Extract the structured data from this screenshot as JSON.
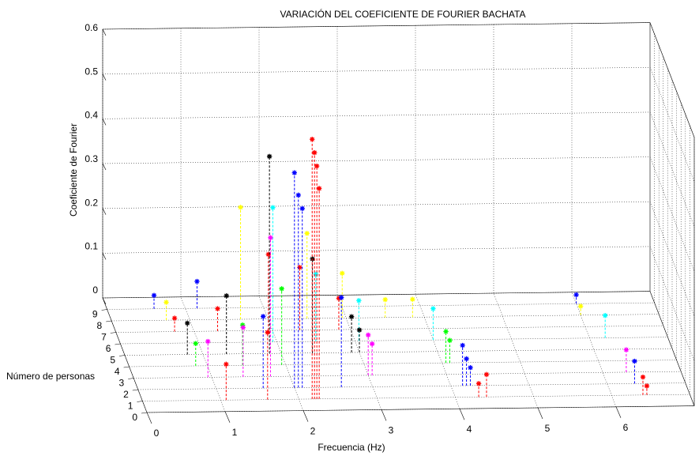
{
  "chart_data": {
    "type": "stem3",
    "title": "VARIACIÓN DEL COEFICIENTE DE FOURIER BACHATA",
    "xlabel": "Frecuencia (Hz)",
    "ylabel": "Número de personas",
    "zlabel": "Coeficiente de Fourier",
    "xlim": [
      0,
      7
    ],
    "xticks": [
      0,
      1,
      2,
      3,
      4,
      5,
      6
    ],
    "ylim": [
      0,
      10
    ],
    "yticks": [
      0,
      1,
      2,
      3,
      4,
      5,
      6,
      7,
      8,
      9
    ],
    "zlim": [
      0,
      0.6
    ],
    "zticks": [
      0,
      0.1,
      0.2,
      0.3,
      0.4,
      0.5,
      0.6
    ],
    "grid": true,
    "series": [
      {
        "person": 1,
        "color": "#ff0000",
        "x": [
          1.07,
          1.6,
          2.17,
          2.2,
          2.23,
          2.26,
          4.3,
          4.4,
          6.4,
          6.45
        ],
        "values": [
          0.08,
          0.15,
          0.58,
          0.55,
          0.52,
          0.47,
          0.03,
          0.05,
          0.04,
          0.02
        ]
      },
      {
        "person": 2,
        "color": "#0000ff",
        "x": [
          1.6,
          2.0,
          2.05,
          2.1,
          2.6,
          4.15,
          4.2,
          4.25,
          6.35
        ],
        "values": [
          0.16,
          0.48,
          0.43,
          0.4,
          0.2,
          0.09,
          0.06,
          0.04,
          0.05
        ]
      },
      {
        "person": 3,
        "color": "#ff00ff",
        "x": [
          0.95,
          1.4,
          1.75,
          3.0,
          3.05,
          6.3
        ],
        "values": [
          0.08,
          0.11,
          0.31,
          0.09,
          0.07,
          0.05
        ]
      },
      {
        "person": 4,
        "color": "#00ff00",
        "x": [
          0.85,
          1.45,
          1.95,
          4.05,
          4.1
        ],
        "values": [
          0.05,
          0.09,
          0.17,
          0.07,
          0.05
        ]
      },
      {
        "person": 5,
        "color": "#000000",
        "x": [
          0.8,
          1.3,
          1.85,
          2.4,
          2.9,
          3.0
        ],
        "values": [
          0.07,
          0.13,
          0.44,
          0.21,
          0.08,
          0.05
        ]
      },
      {
        "person": 6,
        "color": "#00ffff",
        "x": [
          1.95,
          2.5,
          3.05,
          4.0,
          6.2
        ],
        "values": [
          0.3,
          0.15,
          0.09,
          0.07,
          0.05
        ]
      },
      {
        "person": 7,
        "color": "#ff0000",
        "x": [
          0.75,
          1.3,
          1.95,
          2.35,
          2.85
        ],
        "values": [
          0.03,
          0.05,
          0.17,
          0.14,
          0.07
        ]
      },
      {
        "person": 8,
        "color": "#ffff00",
        "x": [
          0.7,
          1.65,
          2.5,
          2.95,
          3.5,
          3.85,
          6.0
        ],
        "values": [
          0.04,
          0.25,
          0.19,
          0.1,
          0.04,
          0.04,
          0.02
        ]
      },
      {
        "person": 9,
        "color": "#0000ff",
        "x": [
          0.6,
          1.15,
          6.0
        ],
        "values": [
          0.03,
          0.06,
          0.02
        ]
      }
    ]
  }
}
